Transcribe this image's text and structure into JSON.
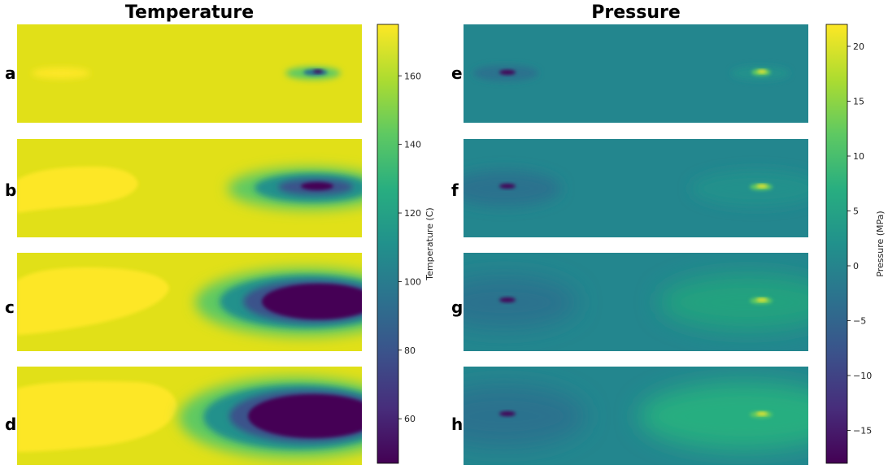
{
  "chart_data": [
    {
      "type": "heatmap",
      "title": "Temperature",
      "panels": [
        "a",
        "b",
        "c",
        "d"
      ],
      "colormap": "viridis",
      "background_value": 172,
      "colorbar": {
        "label": "Temperature (C)",
        "range": [
          47,
          175
        ],
        "ticks": [
          60,
          80,
          100,
          120,
          140,
          160
        ]
      },
      "features": [
        {
          "panel": "a",
          "hot_zone_extent": 0.2,
          "cold_zone_extent": 0.22,
          "cold_min": 55
        },
        {
          "panel": "b",
          "hot_zone_extent": 0.35,
          "cold_zone_extent": 0.38,
          "cold_min": 50
        },
        {
          "panel": "c",
          "hot_zone_extent": 0.45,
          "cold_zone_extent": 0.45,
          "cold_min": 47
        },
        {
          "panel": "d",
          "hot_zone_extent": 0.5,
          "cold_zone_extent": 0.5,
          "cold_min": 47
        }
      ]
    },
    {
      "type": "heatmap",
      "title": "Pressure",
      "panels": [
        "e",
        "f",
        "g",
        "h"
      ],
      "colormap": "viridis",
      "background_value": 0,
      "colorbar": {
        "label": "Pressure (MPa)",
        "range": [
          -18,
          22
        ],
        "ticks": [
          20,
          15,
          10,
          5,
          0,
          -5,
          -10,
          -15
        ],
        "tick_labels": [
          "20",
          "15",
          "10",
          "5",
          "0",
          "−5",
          "−10",
          "−15"
        ]
      },
      "features": [
        {
          "panel": "e",
          "low_min": -17,
          "high_max": 21,
          "halo_strength": 0.1
        },
        {
          "panel": "f",
          "low_min": -17,
          "high_max": 21,
          "halo_strength": 0.3
        },
        {
          "panel": "g",
          "low_min": -17,
          "high_max": 21,
          "halo_strength": 0.5
        },
        {
          "panel": "h",
          "low_min": -17,
          "high_max": 21,
          "halo_strength": 0.7
        }
      ]
    }
  ]
}
